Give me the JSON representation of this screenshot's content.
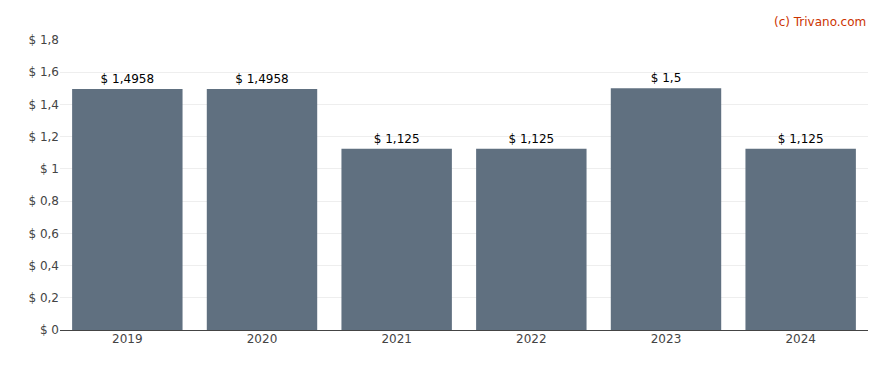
{
  "chart_data": {
    "type": "bar",
    "categories": [
      "2019",
      "2020",
      "2021",
      "2022",
      "2023",
      "2024"
    ],
    "values": [
      1.4958,
      1.4958,
      1.125,
      1.125,
      1.5,
      1.125
    ],
    "value_labels": [
      "$ 1,4958",
      "$ 1,4958",
      "$ 1,125",
      "$ 1,125",
      "$ 1,5",
      "$ 1,125"
    ],
    "data_labels": true,
    "color": "#607080",
    "ylim": [
      0,
      1.8
    ],
    "yticks": [
      {
        "value": 0,
        "label": "$ 0"
      },
      {
        "value": 0.2,
        "label": "$ 0,2"
      },
      {
        "value": 0.4,
        "label": "$ 0,4"
      },
      {
        "value": 0.6,
        "label": "$ 0,6"
      },
      {
        "value": 0.8,
        "label": "$ 0,8"
      },
      {
        "value": 1.0,
        "label": "$ 1"
      },
      {
        "value": 1.2,
        "label": "$ 1,2"
      },
      {
        "value": 1.4,
        "label": "$ 1,4"
      },
      {
        "value": 1.6,
        "label": "$ 1,6"
      },
      {
        "value": 1.8,
        "label": "$ 1,8"
      }
    ],
    "grid": true,
    "annotations": [
      {
        "text": "(c) Trivano.com",
        "color": "#cc3300"
      }
    ]
  }
}
